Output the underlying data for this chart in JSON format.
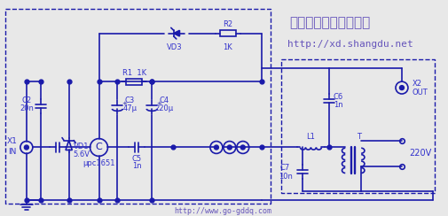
{
  "title1": "超小型有线电视放大器",
  "title2": "http://xd.shangdu.net",
  "footer": "http://www.go-gddq.com",
  "bg_color": "#e8e8e8",
  "line_color": "#1a1aaa",
  "dot_color": "#1a1aaa",
  "text_color": "#3333cc",
  "title_color": "#6655bb"
}
